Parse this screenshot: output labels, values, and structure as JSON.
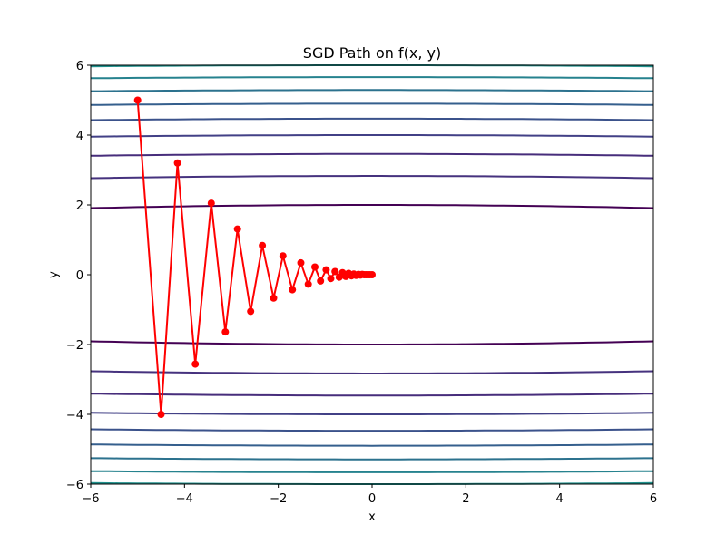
{
  "chart_data": {
    "type": "line",
    "title": "SGD Path on f(x, y)",
    "xlabel": "x",
    "ylabel": "y",
    "xlim": [
      -6,
      6
    ],
    "ylim": [
      -6,
      6
    ],
    "xticks": [
      -6,
      -4,
      -2,
      0,
      2,
      4,
      6
    ],
    "yticks": [
      -6,
      -4,
      -2,
      0,
      2,
      4,
      6
    ],
    "xtick_labels": [
      "−6",
      "−4",
      "−2",
      "0",
      "2",
      "4",
      "6"
    ],
    "ytick_labels": [
      "−6",
      "−4",
      "−2",
      "0",
      "2",
      "4",
      "6"
    ],
    "grid": false,
    "legend": "none",
    "contour_levels": [
      2.0,
      2.83,
      3.46,
      4.0,
      4.47,
      4.9,
      5.29,
      5.66,
      6.0
    ],
    "contour_colors": [
      "#440154",
      "#46327e",
      "#472d7b",
      "#424086",
      "#3b528b",
      "#355f8d",
      "#2c728e",
      "#26828e",
      "#21918c"
    ],
    "series": [
      {
        "color": "#ff0000",
        "x": [
          -5.0,
          -4.5,
          -4.15,
          -3.77,
          -3.43,
          -3.13,
          -2.87,
          -2.59,
          -2.34,
          -2.1,
          -1.9,
          -1.7,
          -1.52,
          -1.36,
          -1.22,
          -1.1,
          -0.98,
          -0.88,
          -0.79,
          -0.7,
          -0.63,
          -0.56,
          -0.5,
          -0.44,
          -0.39,
          -0.34,
          -0.29,
          -0.25,
          -0.21,
          -0.17,
          -0.13,
          -0.09,
          -0.05,
          0.0
        ],
        "y": [
          5.0,
          -4.0,
          3.2,
          -2.56,
          2.05,
          -1.64,
          1.31,
          -1.05,
          0.84,
          -0.67,
          0.54,
          -0.43,
          0.34,
          -0.27,
          0.22,
          -0.18,
          0.14,
          -0.11,
          0.09,
          -0.07,
          0.06,
          -0.05,
          0.04,
          -0.03,
          0.02,
          -0.02,
          0.01,
          -0.01,
          0.01,
          0.0,
          0.0,
          0.0,
          0.0,
          0.0
        ]
      }
    ]
  }
}
